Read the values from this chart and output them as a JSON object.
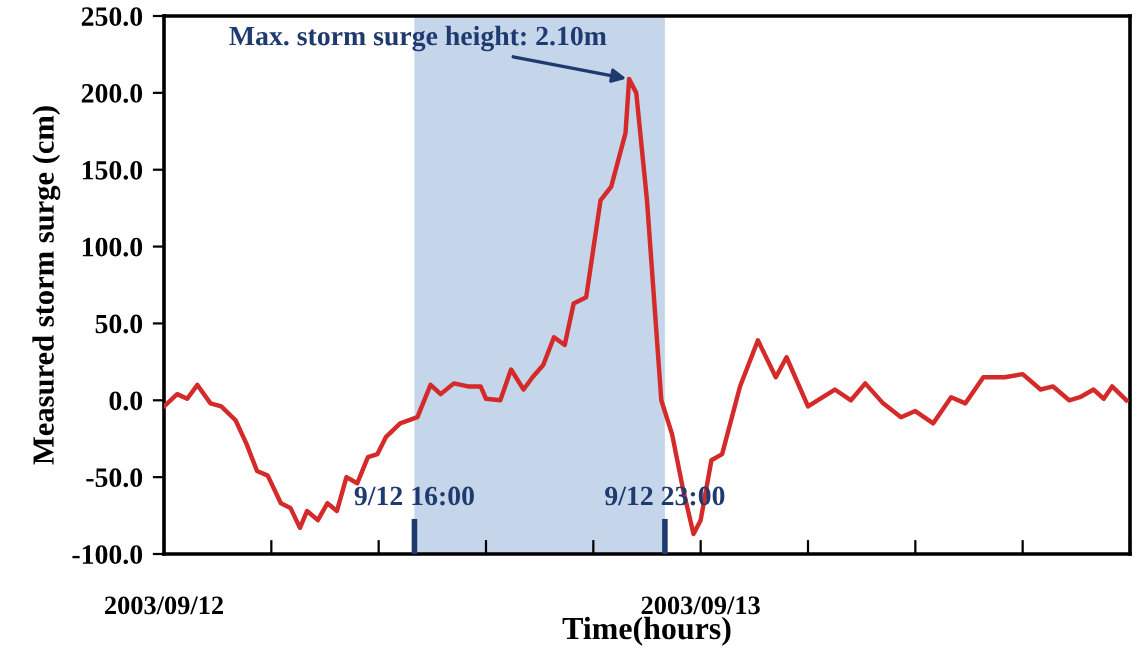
{
  "chart_data": {
    "type": "line",
    "xlabel": "Time(hours)",
    "ylabel": "Measured storm surge (cm)",
    "x": [
      "2003-09-12T09:00",
      "2003-09-12T09:22",
      "2003-09-12T09:39",
      "2003-09-12T09:56",
      "2003-09-12T10:18",
      "2003-09-12T10:36",
      "2003-09-12T11:00",
      "2003-09-12T11:18",
      "2003-09-12T11:36",
      "2003-09-12T11:54",
      "2003-09-12T12:16",
      "2003-09-12T12:32",
      "2003-09-12T12:48",
      "2003-09-12T13:00",
      "2003-09-12T13:18",
      "2003-09-12T13:34",
      "2003-09-12T13:50",
      "2003-09-12T14:06",
      "2003-09-12T14:24",
      "2003-09-12T14:42",
      "2003-09-12T14:58",
      "2003-09-12T15:12",
      "2003-09-12T15:36",
      "2003-09-12T16:05",
      "2003-09-12T16:27",
      "2003-09-12T16:44",
      "2003-09-12T17:06",
      "2003-09-12T17:30",
      "2003-09-12T17:51",
      "2003-09-12T18:00",
      "2003-09-12T18:24",
      "2003-09-12T18:42",
      "2003-09-12T19:03",
      "2003-09-12T19:18",
      "2003-09-12T19:36",
      "2003-09-12T19:54",
      "2003-09-12T20:12",
      "2003-09-12T20:27",
      "2003-09-12T20:48",
      "2003-09-12T21:12",
      "2003-09-12T21:30",
      "2003-09-12T21:54",
      "2003-09-12T22:00",
      "2003-09-12T22:12",
      "2003-09-12T22:30",
      "2003-09-12T22:54",
      "2003-09-12T23:12",
      "2003-09-12T23:30",
      "2003-09-12T23:48",
      "2003-09-13T00:00",
      "2003-09-13T00:18",
      "2003-09-13T00:36",
      "2003-09-13T01:06",
      "2003-09-13T01:36",
      "2003-09-13T02:06",
      "2003-09-13T02:24",
      "2003-09-13T03:00",
      "2003-09-13T03:45",
      "2003-09-13T04:12",
      "2003-09-13T04:36",
      "2003-09-13T05:06",
      "2003-09-13T05:36",
      "2003-09-13T06:00",
      "2003-09-13T06:30",
      "2003-09-13T07:00",
      "2003-09-13T07:24",
      "2003-09-13T07:54",
      "2003-09-13T08:30",
      "2003-09-13T09:00",
      "2003-09-13T09:30",
      "2003-09-13T09:51",
      "2003-09-13T10:18",
      "2003-09-13T10:36",
      "2003-09-13T10:59",
      "2003-09-13T11:16",
      "2003-09-13T11:30",
      "2003-09-13T11:54"
    ],
    "series": [
      {
        "color": "#d42a2a",
        "values": [
          -4,
          4,
          1,
          10,
          -2,
          -4,
          -13,
          -28,
          -46,
          -49,
          -67,
          -70,
          -83,
          -72,
          -78,
          -67,
          -72,
          -50,
          -54,
          -37,
          -35,
          -24,
          -15,
          -11,
          10,
          4,
          11,
          9,
          9,
          1,
          0,
          20,
          7,
          15,
          23,
          41,
          36,
          63,
          67,
          130,
          139,
          174,
          209,
          200,
          130,
          0,
          -22,
          -57,
          -87,
          -78,
          -39,
          -35,
          9,
          39,
          15,
          28,
          -4,
          7,
          0,
          11,
          -2,
          -11,
          -7,
          -15,
          2,
          -2,
          15,
          15,
          17,
          7,
          9,
          0,
          2,
          7,
          1,
          9,
          0
        ]
      }
    ],
    "xlim": [
      "2003-09-12T09:00",
      "2003-09-13T12:00"
    ],
    "xticks": [
      {
        "value": "2003-09-12T09:00",
        "label": "2003/09/12"
      },
      {
        "value": "2003-09-12T12:00",
        "label": null
      },
      {
        "value": "2003-09-12T15:00",
        "label": null
      },
      {
        "value": "2003-09-12T18:00",
        "label": null
      },
      {
        "value": "2003-09-12T21:00",
        "label": null
      },
      {
        "value": "2003-09-13T00:00",
        "label": "2003/09/13"
      },
      {
        "value": "2003-09-13T03:00",
        "label": null
      },
      {
        "value": "2003-09-13T06:00",
        "label": null
      },
      {
        "value": "2003-09-13T09:00",
        "label": null
      },
      {
        "value": "2003-09-13T12:00",
        "label": null
      }
    ],
    "ylim": [
      -100,
      250
    ],
    "yticks": [
      {
        "value": -100,
        "label": "-100.0"
      },
      {
        "value": -50,
        "label": "-50.0"
      },
      {
        "value": 0,
        "label": "0.0"
      },
      {
        "value": 50,
        "label": "50.0"
      },
      {
        "value": 100,
        "label": "100.0"
      },
      {
        "value": 150,
        "label": "150.0"
      },
      {
        "value": 200,
        "label": "200.0"
      },
      {
        "value": 250,
        "label": "250.0"
      }
    ],
    "bands": [
      {
        "axis": "x",
        "from": "2003-09-12T16:00",
        "to": "2003-09-12T23:00",
        "color": "#c5d5ea"
      }
    ],
    "ref_lines": [
      {
        "axis": "x",
        "value": "2003-09-12T16:00",
        "label": "9/12 16:00",
        "color": "#1f3a6e"
      },
      {
        "axis": "x",
        "value": "2003-09-12T23:00",
        "label": "9/12 23:00",
        "color": "#1f3a6e"
      }
    ],
    "annotations": [
      {
        "text": "Max. storm surge height: 2.10m",
        "x": "2003-09-12T22:00",
        "y": 209
      }
    ],
    "grid": false,
    "legend": false,
    "marker": "none",
    "line_style": "solid"
  }
}
